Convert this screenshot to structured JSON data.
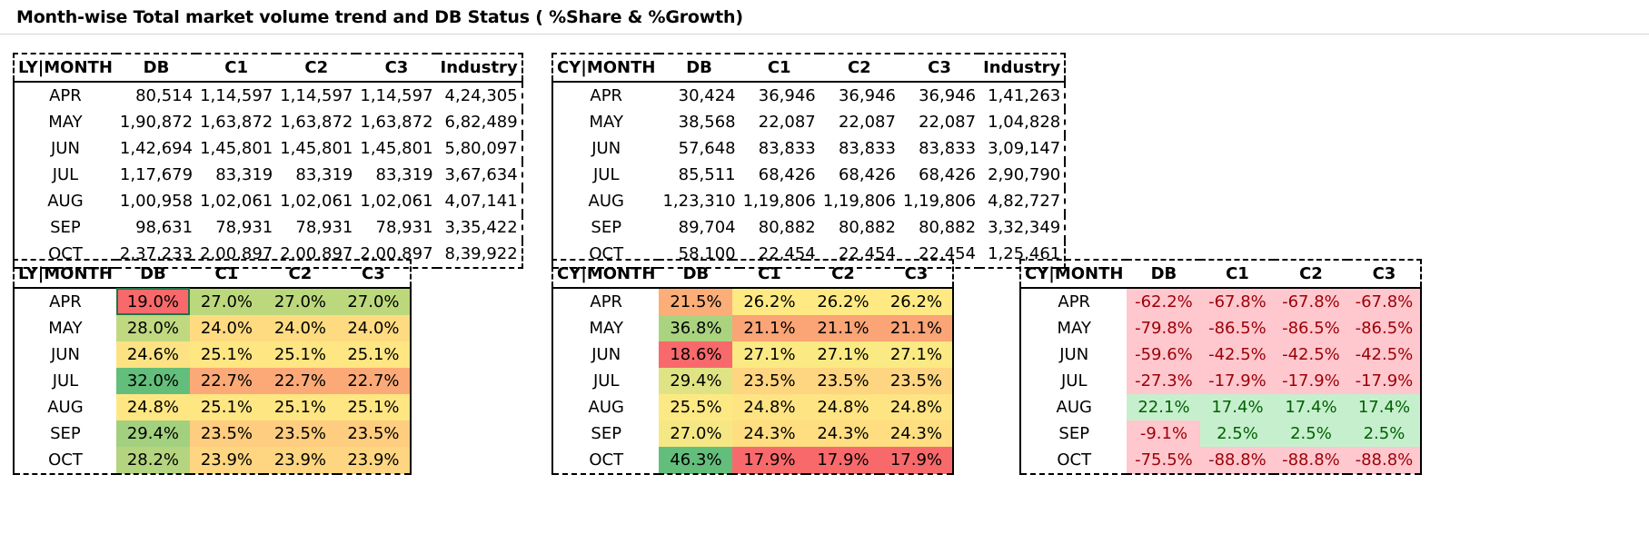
{
  "title": "Month-wise Total market volume trend and DB Status ( %Share & %Growth)",
  "ly_volume": {
    "headers": [
      "LY|MONTH",
      "DB",
      "C1",
      "C2",
      "C3",
      "Industry"
    ],
    "rows": [
      [
        "APR",
        "80,514",
        "1,14,597",
        "1,14,597",
        "1,14,597",
        "4,24,305"
      ],
      [
        "MAY",
        "1,90,872",
        "1,63,872",
        "1,63,872",
        "1,63,872",
        "6,82,489"
      ],
      [
        "JUN",
        "1,42,694",
        "1,45,801",
        "1,45,801",
        "1,45,801",
        "5,80,097"
      ],
      [
        "JUL",
        "1,17,679",
        "83,319",
        "83,319",
        "83,319",
        "3,67,634"
      ],
      [
        "AUG",
        "1,00,958",
        "1,02,061",
        "1,02,061",
        "1,02,061",
        "4,07,141"
      ],
      [
        "SEP",
        "98,631",
        "78,931",
        "78,931",
        "78,931",
        "3,35,422"
      ],
      [
        "OCT",
        "2,37,233",
        "2,00,897",
        "2,00,897",
        "2,00,897",
        "8,39,922"
      ]
    ]
  },
  "cy_volume": {
    "headers": [
      "CY|MONTH",
      "DB",
      "C1",
      "C2",
      "C3",
      "Industry"
    ],
    "rows": [
      [
        "APR",
        "30,424",
        "36,946",
        "36,946",
        "36,946",
        "1,41,263"
      ],
      [
        "MAY",
        "38,568",
        "22,087",
        "22,087",
        "22,087",
        "1,04,828"
      ],
      [
        "JUN",
        "57,648",
        "83,833",
        "83,833",
        "83,833",
        "3,09,147"
      ],
      [
        "JUL",
        "85,511",
        "68,426",
        "68,426",
        "68,426",
        "2,90,790"
      ],
      [
        "AUG",
        "1,23,310",
        "1,19,806",
        "1,19,806",
        "1,19,806",
        "4,82,727"
      ],
      [
        "SEP",
        "89,704",
        "80,882",
        "80,882",
        "80,882",
        "3,32,349"
      ],
      [
        "OCT",
        "58,100",
        "22,454",
        "22,454",
        "22,454",
        "1,25,461"
      ]
    ]
  },
  "ly_share": {
    "headers": [
      "LY|MONTH",
      "DB",
      "C1",
      "C2",
      "C3"
    ],
    "rows": [
      [
        "APR",
        "19.0%",
        "27.0%",
        "27.0%",
        "27.0%"
      ],
      [
        "MAY",
        "28.0%",
        "24.0%",
        "24.0%",
        "24.0%"
      ],
      [
        "JUN",
        "24.6%",
        "25.1%",
        "25.1%",
        "25.1%"
      ],
      [
        "JUL",
        "32.0%",
        "22.7%",
        "22.7%",
        "22.7%"
      ],
      [
        "AUG",
        "24.8%",
        "25.1%",
        "25.1%",
        "25.1%"
      ],
      [
        "SEP",
        "29.4%",
        "23.5%",
        "23.5%",
        "23.5%"
      ],
      [
        "OCT",
        "28.2%",
        "23.9%",
        "23.9%",
        "23.9%"
      ]
    ],
    "fills": [
      [
        "#f8696b",
        "#bcd87c",
        "#bcd87c",
        "#bcd87c"
      ],
      [
        "#c0d980",
        "#fedb81",
        "#fedb81",
        "#fedb81"
      ],
      [
        "#fde283",
        "#fee683",
        "#fee683",
        "#fee683"
      ],
      [
        "#63be7b",
        "#fbaa77",
        "#fbaa77",
        "#fbaa77"
      ],
      [
        "#fee783",
        "#fee683",
        "#fee683",
        "#fee683"
      ],
      [
        "#a2d07f",
        "#fecd7f",
        "#fecd7f",
        "#fecd7f"
      ],
      [
        "#b5d47f",
        "#fed580",
        "#fed580",
        "#fed580"
      ]
    ]
  },
  "cy_share": {
    "headers": [
      "CY|MONTH",
      "DB",
      "C1",
      "C2",
      "C3"
    ],
    "rows": [
      [
        "APR",
        "21.5%",
        "26.2%",
        "26.2%",
        "26.2%"
      ],
      [
        "MAY",
        "36.8%",
        "21.1%",
        "21.1%",
        "21.1%"
      ],
      [
        "JUN",
        "18.6%",
        "27.1%",
        "27.1%",
        "27.1%"
      ],
      [
        "JUL",
        "29.4%",
        "23.5%",
        "23.5%",
        "23.5%"
      ],
      [
        "AUG",
        "25.5%",
        "24.8%",
        "24.8%",
        "24.8%"
      ],
      [
        "SEP",
        "27.0%",
        "24.3%",
        "24.3%",
        "24.3%"
      ],
      [
        "OCT",
        "46.3%",
        "17.9%",
        "17.9%",
        "17.9%"
      ]
    ],
    "fills": [
      [
        "#fbae78",
        "#fee983",
        "#fee983",
        "#fee983"
      ],
      [
        "#aad380",
        "#fba476",
        "#fba476",
        "#fba476"
      ],
      [
        "#f8696b",
        "#fbe983",
        "#fbe983",
        "#fbe983"
      ],
      [
        "#e0e383",
        "#fed580",
        "#fed580",
        "#fed580"
      ],
      [
        "#fde983",
        "#fee482",
        "#fee482",
        "#fee482"
      ],
      [
        "#f5e884",
        "#fede81",
        "#fede81",
        "#fede81"
      ],
      [
        "#63be7b",
        "#f8696b",
        "#f8696b",
        "#f8696b"
      ]
    ]
  },
  "cy_growth": {
    "headers": [
      "CY|MONTH",
      "DB",
      "C1",
      "C2",
      "C3"
    ],
    "rows": [
      [
        "APR",
        "-62.2%",
        "-67.8%",
        "-67.8%",
        "-67.8%"
      ],
      [
        "MAY",
        "-79.8%",
        "-86.5%",
        "-86.5%",
        "-86.5%"
      ],
      [
        "JUN",
        "-59.6%",
        "-42.5%",
        "-42.5%",
        "-42.5%"
      ],
      [
        "JUL",
        "-27.3%",
        "-17.9%",
        "-17.9%",
        "-17.9%"
      ],
      [
        "AUG",
        "22.1%",
        "17.4%",
        "17.4%",
        "17.4%"
      ],
      [
        "SEP",
        "-9.1%",
        "2.5%",
        "2.5%",
        "2.5%"
      ],
      [
        "OCT",
        "-75.5%",
        "-88.8%",
        "-88.8%",
        "-88.8%"
      ]
    ],
    "neg_fill": "#ffc7ce",
    "neg_text": "#9c0006",
    "pos_fill": "#c6efce",
    "pos_text": "#006100"
  }
}
